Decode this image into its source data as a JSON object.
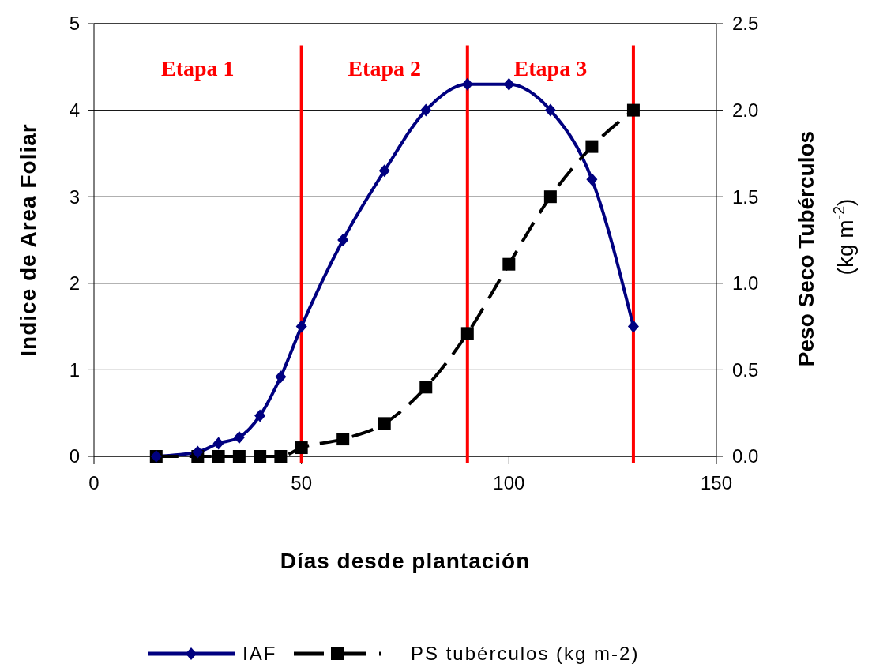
{
  "chart_data": {
    "type": "line",
    "xlabel": "Días desde plantación",
    "ylabel": "Indice de Area Foliar",
    "y2label": "Peso Seco Tubérculos (kg m$^{-2}$)",
    "xlim": [
      0,
      150
    ],
    "xticks": [
      0,
      50,
      100,
      150
    ],
    "ylim": [
      0,
      5
    ],
    "yticks": [
      0,
      1,
      2,
      3,
      4,
      5
    ],
    "y2lim": [
      0,
      2.5
    ],
    "y2ticks": [
      {
        "value": 0,
        "label": "0.0"
      },
      {
        "value": 0.5,
        "label": "0.5"
      },
      {
        "value": 1,
        "label": "1.0"
      },
      {
        "value": 1.5,
        "label": "1.5"
      },
      {
        "value": 2,
        "label": "2.0"
      },
      {
        "value": 2.5,
        "label": "2.5"
      }
    ],
    "grid": "y",
    "legend": "bottom",
    "series": [
      {
        "name": "IAF",
        "color": "#000080",
        "marker": "diamond",
        "line_style": "solid",
        "x": [
          15,
          25,
          30,
          35,
          40,
          45,
          50,
          60,
          70,
          80,
          90,
          100,
          110,
          120,
          130
        ],
        "values": [
          0,
          0.05,
          0.15,
          0.22,
          0.47,
          0.92,
          1.5,
          2.5,
          3.3,
          4.0,
          4.3,
          4.3,
          4.0,
          3.2,
          1.5
        ]
      },
      {
        "name": "PS tubérculos (kg m-2)",
        "color": "#000000",
        "marker": "square",
        "line_style": "dashed",
        "axis": "y2",
        "x": [
          15,
          25,
          30,
          35,
          40,
          45,
          50,
          60,
          70,
          80,
          90,
          100,
          110,
          120,
          130
        ],
        "values": [
          0,
          0,
          0,
          0,
          0,
          0,
          0.05,
          0.1,
          0.19,
          0.4,
          0.71,
          1.11,
          1.5,
          1.79,
          2.0
        ]
      }
    ],
    "ref_lines": [
      {
        "axis": "x",
        "value": 50,
        "color": "#ff0000"
      },
      {
        "axis": "x",
        "value": 90,
        "color": "#ff0000"
      },
      {
        "axis": "x",
        "value": 130,
        "color": "#ff0000"
      }
    ],
    "annotations": [
      "Etapa 1",
      "Etapa 2",
      "Etapa 3"
    ]
  }
}
